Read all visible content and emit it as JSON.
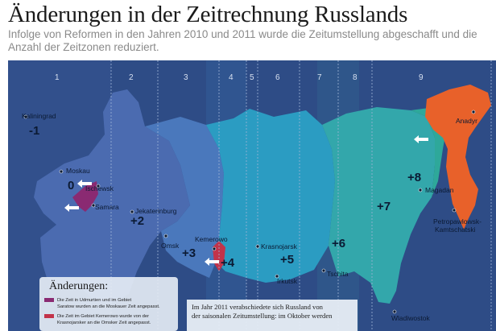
{
  "title": "Änderungen in der Zeitrechnung Russlands",
  "subtitle": "Infolge von Reformen in den Jahren 2010 und 2011 wurde die Zeitumstellung abgeschafft und die Anzahl der Zeitzonen reduziert.",
  "zones": [
    "1",
    "2",
    "3",
    "4",
    "5",
    "6",
    "7",
    "8",
    "9"
  ],
  "offsets": {
    "kaliningrad": "-1",
    "moskau": "0",
    "ural": "+2",
    "omsk": "+3",
    "krasnojarsk": "+4",
    "irkutsk": "+5",
    "jakutsk": "+6",
    "wladiwostok": "+7",
    "magadan": "+8"
  },
  "cities": {
    "kaliningrad": "Kaliningrad",
    "moskau": "Moskau",
    "ischewsk": "Ischewsk",
    "samara": "Samara",
    "jekaterinburg": "Jekaterinburg",
    "omsk": "Omsk",
    "kemerowo": "Kemerowo",
    "krasnojarsk": "Krasnojarsk",
    "irkutsk": "Irkutsk",
    "tschita": "Tschita",
    "wladiwostok": "Wladiwostok",
    "magadan": "Magadan",
    "anadyr": "Anadyr",
    "petropawlowsk_1": "Petropawlowsk-",
    "petropawlowsk_2": "Kamtschatski"
  },
  "legend": {
    "title": "Änderungen:",
    "item1_line1": "Die Zeit in Udmurtien und im Gebiet",
    "item1_line2": "Saratow wurden an die Moskauer Zeit angepasst.",
    "item1_color": "#8a2a72",
    "item2_line1": "Die Zeit im Gebiet Kemerowo wurde von der",
    "item2_line2": "Krasnojarsker an die Omsker Zeit angepasst.",
    "item2_color": "#c2334a"
  },
  "note": {
    "line1": "Im Jahr 2011 verabschiedete sich Russland von",
    "line2": "der saisonalen Zeitumstellung: im Oktober werden"
  },
  "colors": {
    "ocean": "#2e4c86",
    "zone_west": "#4b6bb0",
    "zone_mid": "#3f82c4",
    "zone_center": "#2b9cc2",
    "zone_east": "#3aa7b0",
    "zone_far_east": "#2ea89a",
    "changed_east": "#e8612a"
  }
}
